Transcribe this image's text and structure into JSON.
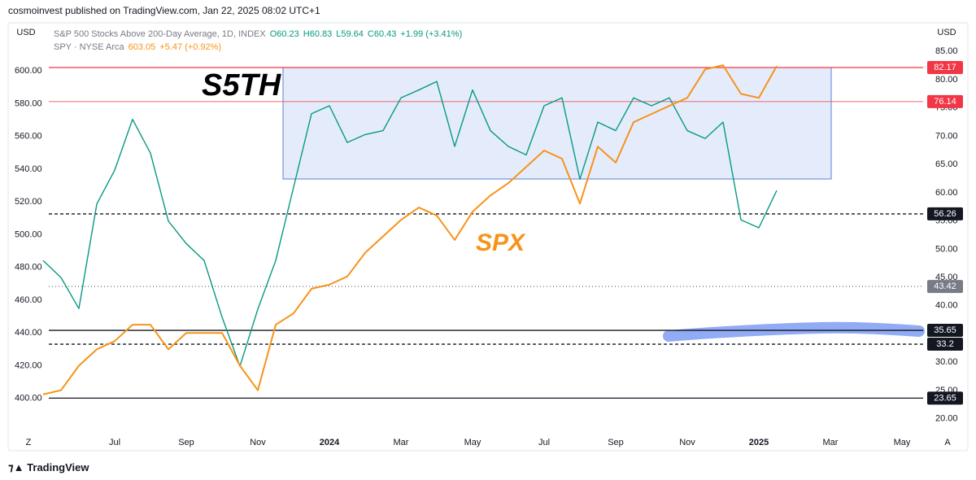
{
  "header": {
    "published": "cosmoinvest published on TradingView.com, Jan 22, 2025 08:02 UTC+1",
    "currency_left": "USD",
    "currency_right": "USD",
    "ohlc": [
      "O60.23",
      "H60.83",
      "L59.64",
      "C60.43",
      "+1.99 (+3.41%)"
    ],
    "spy_price": "603.05",
    "spy_change": "+5.47 (+0.92%)",
    "zoom": "Z",
    "auto": "A"
  },
  "footer": {
    "brand": "TradingView"
  },
  "chart_data": {
    "type": "line",
    "categories": [
      null,
      null,
      null,
      null,
      "Jul",
      null,
      null,
      null,
      "Sep",
      null,
      null,
      null,
      "Nov",
      null,
      null,
      null,
      "2024",
      null,
      null,
      null,
      "Mar",
      null,
      null,
      null,
      "May",
      null,
      null,
      null,
      "Jul",
      null,
      null,
      null,
      "Sep",
      null,
      null,
      null,
      "Nov",
      null,
      null,
      null,
      "2025",
      null,
      null,
      null,
      "Mar",
      null,
      null,
      null,
      "May",
      null
    ],
    "series": [
      {
        "name": "S&P 500 Stocks Above 200-Day Average, 1D, INDEX",
        "color": "#089981",
        "axis": "y2",
        "values": [
          48,
          45,
          39.5,
          58,
          64,
          73,
          67,
          55,
          51,
          48,
          38,
          29.3,
          39.4,
          48,
          61,
          74,
          75.4,
          68.9,
          70.3,
          71,
          76.8,
          78.2,
          79.7,
          68.2,
          78.2,
          71,
          68.2,
          66.7,
          75.4,
          76.8,
          62.4,
          72.5,
          71,
          76.8,
          75.4,
          76.8,
          71,
          69.6,
          72.5,
          55.2,
          53.8,
          60.4,
          null,
          null,
          null,
          null,
          null,
          null,
          null,
          null
        ]
      },
      {
        "name": "SPY · NYSE Arca",
        "color": "#f7931a",
        "values": [
          402.5,
          405,
          420,
          430,
          435,
          445,
          445,
          430,
          440,
          440,
          440,
          420,
          405,
          445,
          452,
          467,
          469.5,
          474.5,
          489,
          499,
          509,
          516.6,
          511.7,
          496.8,
          514,
          524,
          531.5,
          541.4,
          551.4,
          546.4,
          519,
          553.8,
          544,
          568.7,
          573.7,
          578.7,
          583.6,
          601,
          603.5,
          586,
          583.6,
          603,
          null,
          null,
          null,
          null,
          null,
          null,
          null,
          null
        ]
      }
    ],
    "ylim": [
      380,
      616
    ],
    "yticks": [
      {
        "value": 400,
        "label": "400.00"
      },
      {
        "value": 420,
        "label": "420.00"
      },
      {
        "value": 440,
        "label": "440.00"
      },
      {
        "value": 460,
        "label": "460.00"
      },
      {
        "value": 480,
        "label": "480.00"
      },
      {
        "value": 500,
        "label": "500.00"
      },
      {
        "value": 520,
        "label": "520.00"
      },
      {
        "value": 540,
        "label": "540.00"
      },
      {
        "value": 560,
        "label": "560.00"
      },
      {
        "value": 580,
        "label": "580.00"
      },
      {
        "value": 600,
        "label": "600.00"
      }
    ],
    "y2lim": [
      17.8,
      86.2
    ],
    "y2ticks": [
      {
        "value": 20,
        "label": "20.00"
      },
      {
        "value": 25,
        "label": "25.00"
      },
      {
        "value": 30,
        "label": "30.00"
      },
      {
        "value": 35,
        "label": "35.00"
      },
      {
        "value": 40,
        "label": "40.00"
      },
      {
        "value": 45,
        "label": "45.00"
      },
      {
        "value": 50,
        "label": "50.00"
      },
      {
        "value": 55,
        "label": "55.00"
      },
      {
        "value": 60,
        "label": "60.00"
      },
      {
        "value": 65,
        "label": "65.00"
      },
      {
        "value": 70,
        "label": "70.00"
      },
      {
        "value": 75,
        "label": "75.00"
      },
      {
        "value": 80,
        "label": "80.00"
      },
      {
        "value": 85,
        "label": "85.00"
      }
    ],
    "levels": [
      {
        "value": 82.17,
        "color": "#f23645",
        "style": "solid"
      },
      {
        "value": 76.14,
        "color": "#f23645",
        "style": "solid"
      },
      {
        "value": 56.26,
        "color": "#131722",
        "style": "dashed"
      },
      {
        "value": 43.42,
        "color": "#787b86",
        "style": "dotted"
      },
      {
        "value": 35.65,
        "color": "#131722",
        "style": "solid"
      },
      {
        "value": 33.2,
        "color": "#131722",
        "style": "dashed"
      },
      {
        "value": 23.65,
        "color": "#131722",
        "style": "solid"
      }
    ],
    "annotations": [
      "S5TH",
      "SPX"
    ]
  }
}
